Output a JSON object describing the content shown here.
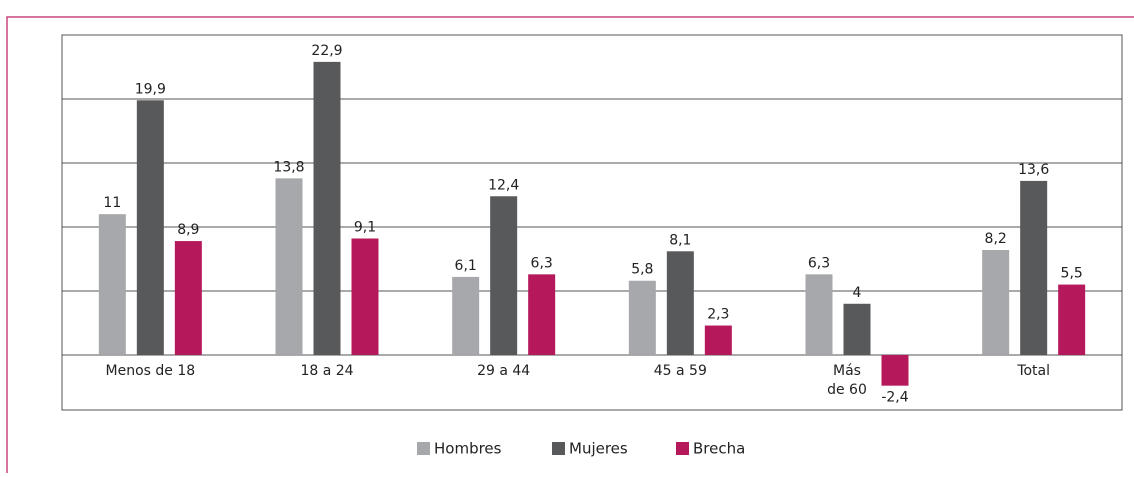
{
  "chart_data": {
    "type": "bar",
    "categories": [
      "Menos de 18",
      "18 a 24",
      "29 a 44",
      "45 a 59",
      [
        "Más",
        "de 60"
      ],
      "Total"
    ],
    "series": [
      {
        "name": "Hombres",
        "color": "#a7a8ab",
        "values": [
          11,
          13.8,
          6.1,
          5.8,
          6.3,
          8.2
        ],
        "value_labels": [
          "11",
          "13,8",
          "6,1",
          "5,8",
          "6,3",
          "8,2"
        ]
      },
      {
        "name": "Mujeres",
        "color": "#58595b",
        "values": [
          19.9,
          22.9,
          12.4,
          8.1,
          4,
          13.6
        ],
        "value_labels": [
          "19,9",
          "22,9",
          "12,4",
          "8,1",
          "4",
          "13,6"
        ]
      },
      {
        "name": "Brecha",
        "color": "#b5195b",
        "values": [
          8.9,
          9.1,
          6.3,
          2.3,
          -2.4,
          5.5
        ],
        "value_labels": [
          "8,9",
          "9,1",
          "6,3",
          "2,3",
          "-2,4",
          "5,5"
        ]
      }
    ],
    "ylim": [
      -4.3,
      25
    ],
    "yticks": [
      0,
      5,
      10,
      15,
      20,
      25
    ],
    "grid": true,
    "legend": "bottom"
  }
}
